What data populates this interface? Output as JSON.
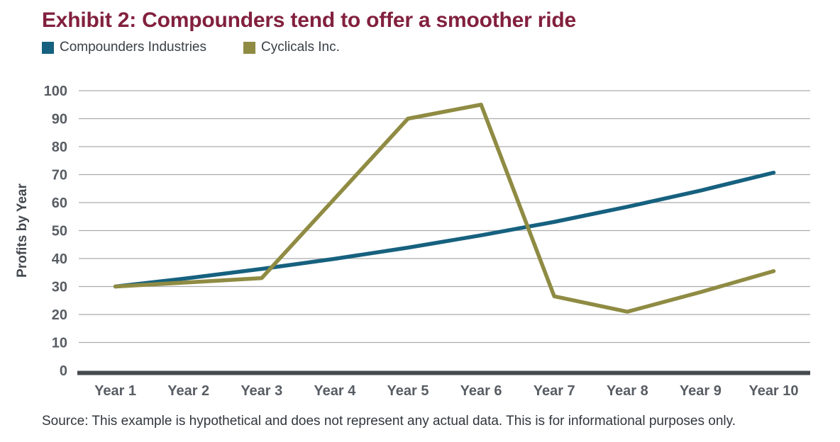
{
  "title": "Exhibit 2: Compounders tend to offer a smoother ride",
  "legend": [
    {
      "label": "Compounders Industries",
      "color": "#16617F"
    },
    {
      "label": "Cyclicals Inc.",
      "color": "#8F8B43"
    }
  ],
  "source": "Source: This example is hypothetical and does not represent any actual data. This is for informational purposes only.",
  "colors": {
    "title": "#82203E",
    "gridline": "#ACACAC",
    "axis": "#46494E",
    "tick_label": "#585D64",
    "compounders_line": "#16617F",
    "cyclicals_line": "#8F8B43"
  },
  "chart_data": {
    "type": "line",
    "title": "Exhibit 2: Compounders tend to offer a smoother ride",
    "categories": [
      "Year 1",
      "Year 2",
      "Year 3",
      "Year 4",
      "Year 5",
      "Year 6",
      "Year 7",
      "Year 8",
      "Year 9",
      "Year 10"
    ],
    "series": [
      {
        "name": "Compounders Industries",
        "color": "#16617F",
        "values": [
          30,
          33,
          36.3,
          39.9,
          43.9,
          48.3,
          53.1,
          58.5,
          64.3,
          70.7
        ]
      },
      {
        "name": "Cyclicals Inc.",
        "color": "#8F8B43",
        "values": [
          30,
          31.5,
          33,
          61.5,
          90,
          95,
          26.5,
          21,
          28,
          35.5
        ]
      }
    ],
    "xlabel": "",
    "ylabel": "Profits by Year",
    "ylim": [
      0,
      100
    ],
    "ytick_step": 10,
    "grid": true,
    "legend_position": "top-left"
  }
}
